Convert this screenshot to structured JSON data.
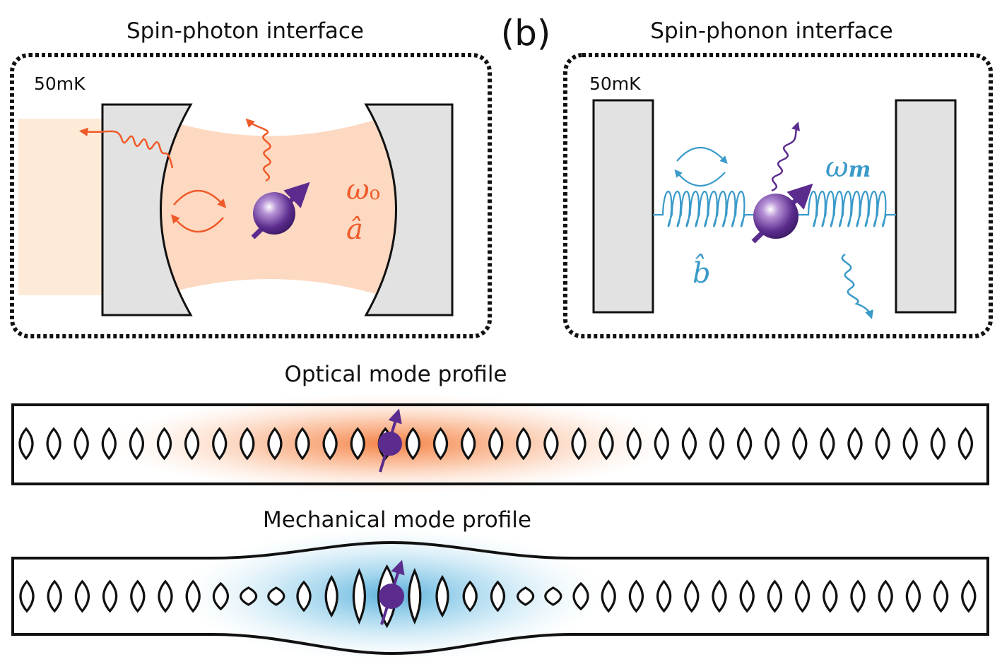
{
  "panel_b": {
    "label": "(b)"
  },
  "spin_photon": {
    "title": "Spin-photon interface",
    "temperature": "50mK",
    "freq_symbol": "ω",
    "freq_subscript": "o",
    "operator": "â",
    "color": "#f05a28",
    "fill_color": "#fdd9c2"
  },
  "spin_phonon": {
    "title": "Spin-phonon interface",
    "temperature": "50mK",
    "freq_symbol": "ω",
    "freq_subscript": "m",
    "operator": "b̂",
    "color": "#3a9ac9"
  },
  "optical_profile": {
    "title": "Optical mode profile",
    "glow_color": "#f68b4e"
  },
  "mechanical_profile": {
    "title": "Mechanical mode profile",
    "glow_color": "#6bbde3"
  },
  "spin_color": "#5b2c8e"
}
